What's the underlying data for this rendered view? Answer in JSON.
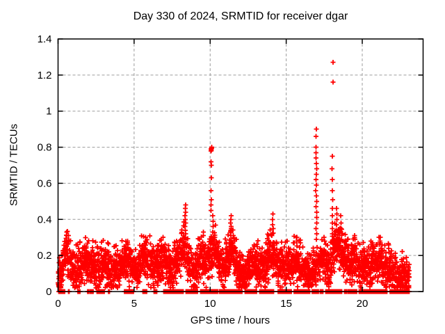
{
  "chart_data": {
    "type": "scatter",
    "title": "Day 330 of 2024, SRMTID for receiver dgar",
    "xlabel": "GPS time / hours",
    "ylabel": "SRMTID / TECUs",
    "marker": "+",
    "marker_color": "#ff0000",
    "grid_color": "#9c9c9c",
    "axis_color": "#000000",
    "background": "#ffffff",
    "xlim": [
      0,
      24
    ],
    "ylim": [
      0,
      1.4
    ],
    "xticks": {
      "values": [
        0,
        5,
        10,
        15,
        20
      ],
      "labels": [
        "0",
        "5",
        "10",
        "15",
        "20"
      ]
    },
    "yticks": {
      "values": [
        0,
        0.2,
        0.4,
        0.6,
        0.8,
        1.0,
        1.2,
        1.4
      ],
      "labels": [
        "0",
        "0.2",
        "0.4",
        "0.6",
        "0.8",
        "1",
        "1.2",
        "1.4"
      ]
    },
    "grid_x": [
      5,
      10,
      15,
      20
    ],
    "grid_y": [
      0.2,
      0.4,
      0.6,
      0.8,
      1.0,
      1.2
    ],
    "grid_on": true,
    "legend": "none",
    "x_range_hours": [
      0,
      23.1
    ],
    "step": 0.012,
    "noise": 0.11,
    "seed": 330,
    "notable_points": [
      [
        18.05,
        1.27
      ],
      [
        18.05,
        1.16
      ],
      [
        16.98,
        0.9
      ],
      [
        10.07,
        0.8
      ],
      [
        8.37,
        0.48
      ],
      [
        14.12,
        0.43
      ],
      [
        11.38,
        0.42
      ]
    ],
    "envelope": [
      [
        0.0,
        0.06
      ],
      [
        0.15,
        0.1
      ],
      [
        0.35,
        0.17
      ],
      [
        0.55,
        0.23
      ],
      [
        0.75,
        0.18
      ],
      [
        1.0,
        0.12
      ],
      [
        1.2,
        0.1
      ],
      [
        1.5,
        0.14
      ],
      [
        1.8,
        0.16
      ],
      [
        2.1,
        0.16
      ],
      [
        2.4,
        0.13
      ],
      [
        2.7,
        0.14
      ],
      [
        3.0,
        0.16
      ],
      [
        3.3,
        0.13
      ],
      [
        3.6,
        0.1
      ],
      [
        3.9,
        0.12
      ],
      [
        4.2,
        0.15
      ],
      [
        4.55,
        0.18
      ],
      [
        4.85,
        0.13
      ],
      [
        5.1,
        0.11
      ],
      [
        5.4,
        0.15
      ],
      [
        5.7,
        0.2
      ],
      [
        6.0,
        0.16
      ],
      [
        6.3,
        0.13
      ],
      [
        6.6,
        0.15
      ],
      [
        6.9,
        0.18
      ],
      [
        7.2,
        0.15
      ],
      [
        7.5,
        0.12
      ],
      [
        7.8,
        0.17
      ],
      [
        8.1,
        0.21
      ],
      [
        8.35,
        0.26
      ],
      [
        8.6,
        0.15
      ],
      [
        8.9,
        0.12
      ],
      [
        9.2,
        0.14
      ],
      [
        9.5,
        0.19
      ],
      [
        9.8,
        0.16
      ],
      [
        10.05,
        0.21
      ],
      [
        10.3,
        0.24
      ],
      [
        10.6,
        0.17
      ],
      [
        10.9,
        0.12
      ],
      [
        11.2,
        0.19
      ],
      [
        11.45,
        0.22
      ],
      [
        11.7,
        0.15
      ],
      [
        12.0,
        0.1
      ],
      [
        12.3,
        0.07
      ],
      [
        12.6,
        0.12
      ],
      [
        12.9,
        0.15
      ],
      [
        13.2,
        0.13
      ],
      [
        13.5,
        0.13
      ],
      [
        13.8,
        0.18
      ],
      [
        14.1,
        0.22
      ],
      [
        14.4,
        0.15
      ],
      [
        14.7,
        0.13
      ],
      [
        15.0,
        0.15
      ],
      [
        15.3,
        0.13
      ],
      [
        15.7,
        0.18
      ],
      [
        16.0,
        0.14
      ],
      [
        16.3,
        0.11
      ],
      [
        16.6,
        0.07
      ],
      [
        16.8,
        0.09
      ],
      [
        17.0,
        0.18
      ],
      [
        17.2,
        0.17
      ],
      [
        17.5,
        0.19
      ],
      [
        17.8,
        0.1
      ],
      [
        18.05,
        0.21
      ],
      [
        18.3,
        0.26
      ],
      [
        18.6,
        0.23
      ],
      [
        18.9,
        0.19
      ],
      [
        19.2,
        0.15
      ],
      [
        19.5,
        0.17
      ],
      [
        19.8,
        0.13
      ],
      [
        20.1,
        0.14
      ],
      [
        20.4,
        0.13
      ],
      [
        20.7,
        0.16
      ],
      [
        21.0,
        0.16
      ],
      [
        21.2,
        0.18
      ],
      [
        21.5,
        0.11
      ],
      [
        21.8,
        0.12
      ],
      [
        22.1,
        0.1
      ],
      [
        22.4,
        0.08
      ],
      [
        22.7,
        0.09
      ],
      [
        23.1,
        0.08
      ]
    ],
    "spikes": [
      {
        "x": 0.55,
        "ys": [
          0.31,
          0.295,
          0.28
        ]
      },
      {
        "x": 4.6,
        "ys": [
          0.28,
          0.26
        ]
      },
      {
        "x": 5.75,
        "ys": [
          0.3,
          0.28
        ]
      },
      {
        "x": 6.9,
        "ys": [
          0.3
        ]
      },
      {
        "x": 8.37,
        "ys": [
          0.48,
          0.46,
          0.44,
          0.42,
          0.4,
          0.38,
          0.36,
          0.34,
          0.32
        ]
      },
      {
        "x": 9.55,
        "ys": [
          0.33,
          0.31
        ]
      },
      {
        "x": 10.07,
        "ys": [
          0.8,
          0.795,
          0.79,
          0.785,
          0.78,
          0.72,
          0.7,
          0.63,
          0.56,
          0.51,
          0.48,
          0.45
        ]
      },
      {
        "x": 10.2,
        "ys": [
          0.42,
          0.39,
          0.36,
          0.33
        ]
      },
      {
        "x": 11.38,
        "ys": [
          0.42,
          0.4,
          0.38,
          0.36,
          0.34,
          0.31
        ]
      },
      {
        "x": 14.12,
        "ys": [
          0.43,
          0.4,
          0.37,
          0.35,
          0.32
        ]
      },
      {
        "x": 15.7,
        "ys": [
          0.3,
          0.28
        ]
      },
      {
        "x": 16.98,
        "ys": [
          0.9,
          0.86,
          0.8,
          0.77,
          0.74,
          0.71,
          0.68,
          0.65,
          0.62,
          0.59,
          0.56,
          0.53,
          0.5,
          0.47,
          0.44,
          0.41,
          0.38,
          0.35,
          0.32,
          0.29
        ]
      },
      {
        "x": 17.5,
        "ys": [
          0.3,
          0.28
        ]
      },
      {
        "x": 18.05,
        "ys": [
          1.27,
          1.16,
          0.75,
          0.68,
          0.62,
          0.56,
          0.51,
          0.46,
          0.42,
          0.38,
          0.35,
          0.32
        ]
      },
      {
        "x": 18.32,
        "ys": [
          0.46,
          0.43,
          0.4,
          0.37,
          0.34
        ]
      },
      {
        "x": 18.6,
        "ys": [
          0.42,
          0.38,
          0.35
        ]
      },
      {
        "x": 19.5,
        "ys": [
          0.31,
          0.29
        ]
      },
      {
        "x": 20.7,
        "ys": [
          0.25
        ]
      },
      {
        "x": 21.2,
        "ys": [
          0.3,
          0.27
        ]
      }
    ],
    "zero_runs": [
      [
        0.05,
        0.25,
        0.5
      ],
      [
        0.3,
        0.45,
        0.25
      ],
      [
        0.65,
        0.75,
        0.4
      ],
      [
        1.3,
        1.5,
        0.45
      ],
      [
        1.85,
        2.0,
        0.3
      ],
      [
        2.1,
        2.35,
        0.4
      ],
      [
        2.55,
        3.05,
        0.6
      ],
      [
        3.3,
        3.4,
        0.3
      ],
      [
        4.35,
        4.95,
        0.65
      ],
      [
        5.5,
        5.85,
        0.45
      ],
      [
        6.3,
        6.5,
        0.5
      ],
      [
        6.95,
        8.25,
        0.6
      ],
      [
        8.4,
        9.2,
        0.45
      ],
      [
        9.35,
        10.5,
        0.55
      ],
      [
        10.6,
        12.1,
        0.6
      ],
      [
        12.3,
        13.05,
        0.5
      ],
      [
        13.25,
        14.25,
        0.4
      ],
      [
        14.45,
        15.35,
        0.5
      ],
      [
        15.5,
        16.55,
        0.55
      ],
      [
        16.7,
        17.45,
        0.4
      ],
      [
        17.6,
        18.65,
        0.5
      ],
      [
        18.8,
        19.65,
        0.45
      ],
      [
        19.8,
        21.65,
        0.55
      ],
      [
        21.8,
        22.1,
        0.5
      ],
      [
        22.15,
        22.8,
        0.97
      ],
      [
        22.85,
        23.1,
        0.6
      ]
    ]
  }
}
